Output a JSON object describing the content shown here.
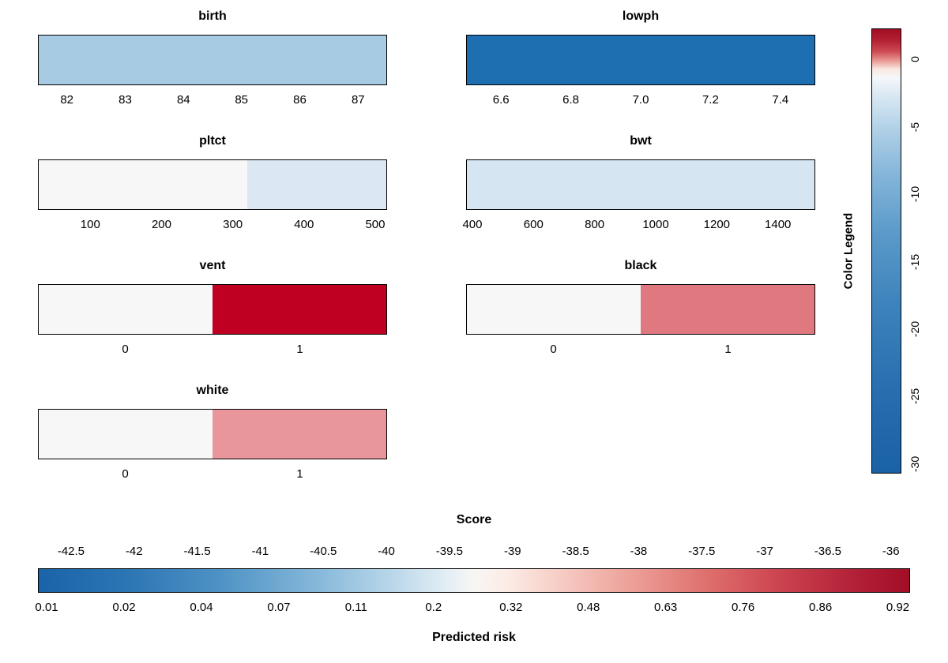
{
  "chart_data": {
    "type": "heatmap",
    "description": "Per-variable risk color strips sharing a diverging blue-white-red color scale",
    "panels": [
      {
        "name": "birth",
        "ticks": [
          "82",
          "83",
          "84",
          "85",
          "86",
          "87"
        ],
        "tick_pos": [
          8.3,
          25,
          41.7,
          58.3,
          75,
          91.7
        ],
        "segments": [
          {
            "from": 0,
            "to": 100,
            "color": "#a6cbe2"
          }
        ]
      },
      {
        "name": "lowph",
        "ticks": [
          "6.6",
          "6.8",
          "7.0",
          "7.2",
          "7.4"
        ],
        "tick_pos": [
          10,
          30,
          50,
          70,
          90
        ],
        "segments": [
          {
            "from": 0,
            "to": 100,
            "color": "#1e6eb2"
          }
        ]
      },
      {
        "name": "pltct",
        "ticks": [
          "100",
          "200",
          "300",
          "400",
          "500"
        ],
        "tick_pos": [
          15,
          35.4,
          55.8,
          76.2,
          96.6
        ],
        "segments": [
          {
            "from": 0,
            "to": 60,
            "color": "#f7f7f7"
          },
          {
            "from": 60,
            "to": 100,
            "color": "#dbe8f3"
          }
        ]
      },
      {
        "name": "bwt",
        "ticks": [
          "400",
          "600",
          "800",
          "1000",
          "1200",
          "1400"
        ],
        "tick_pos": [
          1.8,
          19.3,
          36.8,
          54.3,
          71.8,
          89.3
        ],
        "segments": [
          {
            "from": 0,
            "to": 100,
            "color": "#d5e5f2"
          }
        ]
      },
      {
        "name": "vent",
        "ticks": [
          "0",
          "1"
        ],
        "tick_pos": [
          25,
          75
        ],
        "segments": [
          {
            "from": 0,
            "to": 50,
            "color": "#f7f7f7"
          },
          {
            "from": 50,
            "to": 100,
            "color": "#c00023"
          }
        ]
      },
      {
        "name": "black",
        "ticks": [
          "0",
          "1"
        ],
        "tick_pos": [
          25,
          75
        ],
        "segments": [
          {
            "from": 0,
            "to": 50,
            "color": "#f7f7f7"
          },
          {
            "from": 50,
            "to": 100,
            "color": "#e0787f"
          }
        ]
      },
      {
        "name": "white",
        "ticks": [
          "0",
          "1"
        ],
        "tick_pos": [
          25,
          75
        ],
        "segments": [
          {
            "from": 0,
            "to": 50,
            "color": "#f7f7f7"
          },
          {
            "from": 50,
            "to": 100,
            "color": "#e8969c"
          }
        ]
      }
    ],
    "color_legend": {
      "title": "Color Legend",
      "labels": [
        "0",
        "-5",
        "-10",
        "-15",
        "-20",
        "-25",
        "-30"
      ],
      "label_pos": [
        6.9,
        22.1,
        37.2,
        52.4,
        67.5,
        82.7,
        97.9
      ],
      "value_range": [
        2.3,
        -30.7
      ],
      "gradient": [
        {
          "pos": 0,
          "color": "#a30d26"
        },
        {
          "pos": 2.5,
          "color": "#b22032"
        },
        {
          "pos": 5,
          "color": "#cc4a53"
        },
        {
          "pos": 7,
          "color": "#e9958f"
        },
        {
          "pos": 9,
          "color": "#f8e8e2"
        },
        {
          "pos": 11,
          "color": "#f4f7fa"
        },
        {
          "pos": 15,
          "color": "#d9e8f3"
        },
        {
          "pos": 23,
          "color": "#aecfe6"
        },
        {
          "pos": 33,
          "color": "#84b5d9"
        },
        {
          "pos": 46,
          "color": "#5b9ac9"
        },
        {
          "pos": 62,
          "color": "#3d83bc"
        },
        {
          "pos": 80,
          "color": "#2870b0"
        },
        {
          "pos": 100,
          "color": "#1a61a6"
        }
      ]
    },
    "score_axis": {
      "title": "Score",
      "ticks": [
        "-42.5",
        "-42",
        "-41.5",
        "-41",
        "-40.5",
        "-40",
        "-39.5",
        "-39",
        "-38.5",
        "-38",
        "-37.5",
        "-37",
        "-36.5",
        "-36"
      ],
      "tick_pos": [
        3.8,
        11.03,
        18.26,
        25.49,
        32.72,
        39.95,
        47.18,
        54.42,
        61.65,
        68.88,
        76.11,
        83.34,
        90.57,
        97.8
      ],
      "gradient": [
        {
          "pos": 0,
          "color": "#1a63a9"
        },
        {
          "pos": 10,
          "color": "#2b75b4"
        },
        {
          "pos": 21,
          "color": "#4f93c5"
        },
        {
          "pos": 32,
          "color": "#86b8da"
        },
        {
          "pos": 41,
          "color": "#bcd8ea"
        },
        {
          "pos": 47,
          "color": "#e4eef5"
        },
        {
          "pos": 50,
          "color": "#f8f6f4"
        },
        {
          "pos": 54,
          "color": "#fcebe5"
        },
        {
          "pos": 61,
          "color": "#f5c6be"
        },
        {
          "pos": 69,
          "color": "#eb9b94"
        },
        {
          "pos": 77,
          "color": "#de6e6c"
        },
        {
          "pos": 85,
          "color": "#cc4450"
        },
        {
          "pos": 93,
          "color": "#b4233a"
        },
        {
          "pos": 100,
          "color": "#a30d26"
        }
      ]
    },
    "risk_axis": {
      "title": "Predicted risk",
      "labels": [
        "0.01",
        "0.02",
        "0.04",
        "0.07",
        "0.11",
        "0.2",
        "0.32",
        "0.48",
        "0.63",
        "0.76",
        "0.86",
        "0.92"
      ],
      "label_pos": [
        1.0,
        9.87,
        18.75,
        27.62,
        36.49,
        45.36,
        54.24,
        63.11,
        71.98,
        80.85,
        89.73,
        98.6
      ]
    }
  }
}
